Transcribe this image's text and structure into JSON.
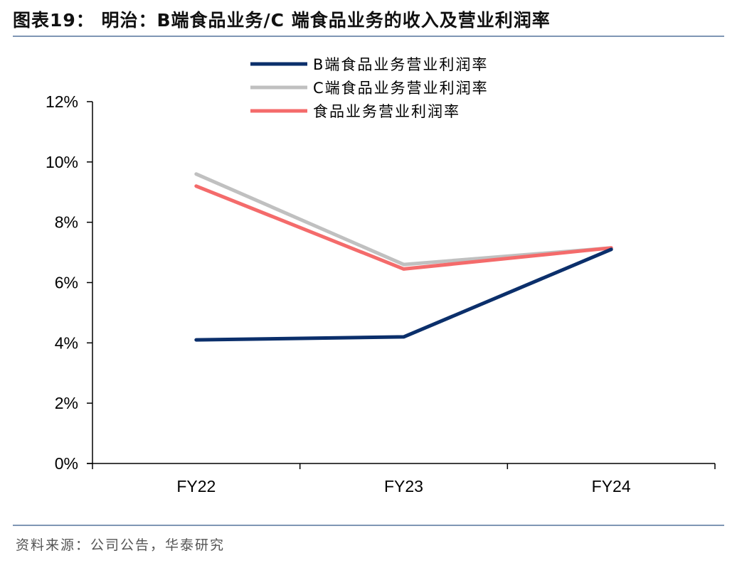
{
  "figure": {
    "title": "图表19： 明治：B端食品业务/C 端食品业务的收入及营业利润率",
    "source": "资料来源：公司公告，华泰研究"
  },
  "chart_data": {
    "type": "line",
    "title": "图表19： 明治：B端食品业务/C 端食品业务的收入及营业利润率",
    "xlabel": "",
    "ylabel": "",
    "categories": [
      "FY22",
      "FY23",
      "FY24"
    ],
    "ylim": [
      0,
      12
    ],
    "yticks": [
      0,
      2,
      4,
      6,
      8,
      10,
      12
    ],
    "ytick_labels": [
      "0%",
      "2%",
      "4%",
      "6%",
      "8%",
      "10%",
      "12%"
    ],
    "grid": false,
    "legend_position": "top-center",
    "series": [
      {
        "name": "B端食品业务营业利润率",
        "values": [
          4.1,
          4.2,
          7.1
        ],
        "color": "#0b2f6b"
      },
      {
        "name": "C端食品业务营业利润率",
        "values": [
          9.6,
          6.6,
          7.15
        ],
        "color": "#c0c0c0"
      },
      {
        "name": "食品业务营业利润率",
        "values": [
          9.2,
          6.45,
          7.15
        ],
        "color": "#f46b6b"
      }
    ]
  }
}
